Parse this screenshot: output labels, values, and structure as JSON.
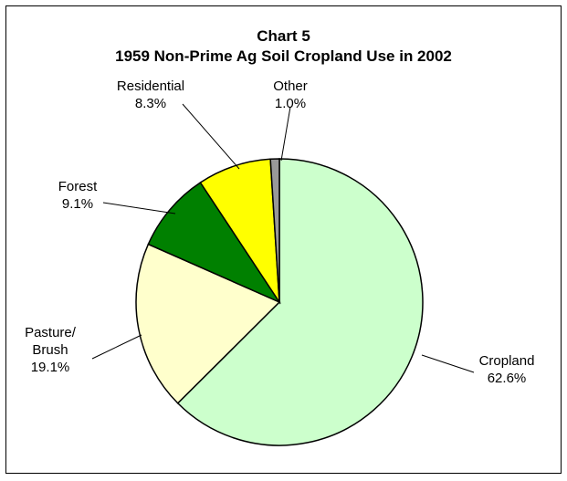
{
  "chart_data": {
    "type": "pie",
    "title": "Chart 5",
    "subtitle": "1959 Non-Prime Ag Soil Cropland Use in 2002",
    "categories": [
      "Cropland",
      "Pasture/ Brush",
      "Forest",
      "Residential",
      "Other"
    ],
    "values": [
      62.6,
      19.1,
      9.1,
      8.3,
      1.0
    ],
    "value_labels": [
      "62.6%",
      "19.1%",
      "9.1%",
      "8.3%",
      "1.0%"
    ],
    "colors": [
      "#ccffcc",
      "#ffffcc",
      "#008000",
      "#ffff00",
      "#999999"
    ]
  }
}
